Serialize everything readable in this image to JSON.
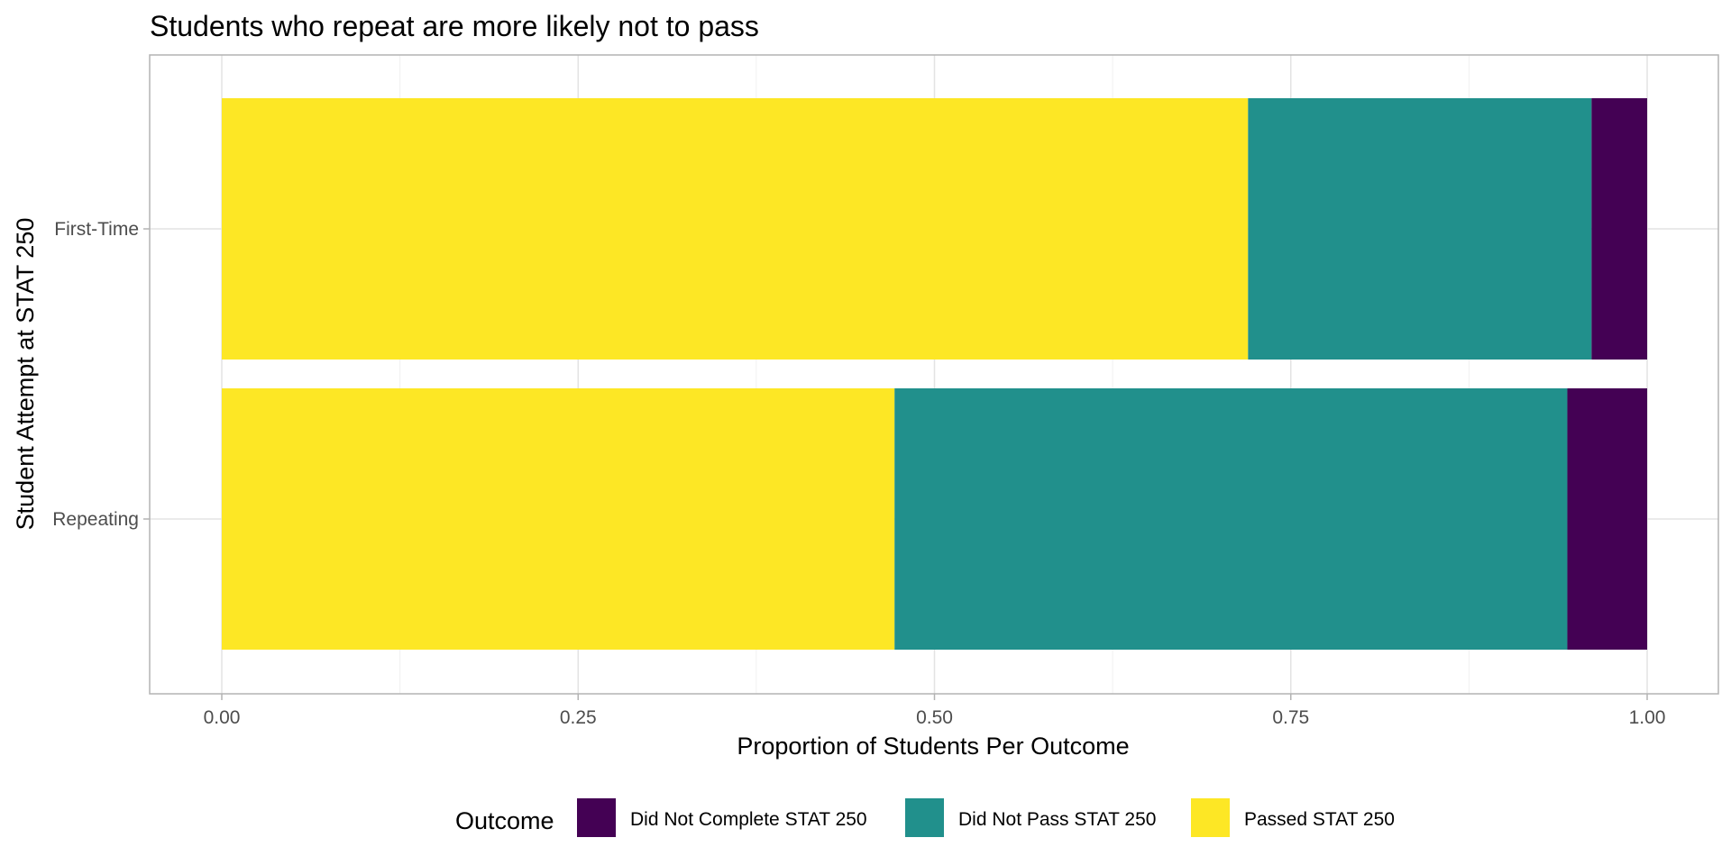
{
  "chart_data": {
    "type": "bar",
    "orientation": "horizontal",
    "stacked": true,
    "title": "Students who repeat are more likely not to pass",
    "xlabel": "Proportion of Students Per Outcome",
    "ylabel": "Student Attempt at STAT 250",
    "categories": [
      "First-Time",
      "Repeating"
    ],
    "xlim": [
      0,
      1
    ],
    "xticks": [
      0,
      0.25,
      0.5,
      0.75,
      1
    ],
    "xtick_labels": [
      "0.00",
      "0.25",
      "0.50",
      "0.75",
      "1.00"
    ],
    "grid": true,
    "legend": {
      "title": "Outcome",
      "position": "bottom"
    },
    "series": [
      {
        "name": "Passed STAT 250",
        "color": "#FDE725",
        "values": [
          0.72,
          0.472
        ]
      },
      {
        "name": "Did Not Pass STAT 250",
        "color": "#21908C",
        "values": [
          0.241,
          0.472
        ]
      },
      {
        "name": "Did Not Complete STAT 250",
        "color": "#440154",
        "values": [
          0.039,
          0.056
        ]
      }
    ],
    "legend_order": [
      "Did Not Complete STAT 250",
      "Did Not Pass STAT 250",
      "Passed STAT 250"
    ]
  }
}
